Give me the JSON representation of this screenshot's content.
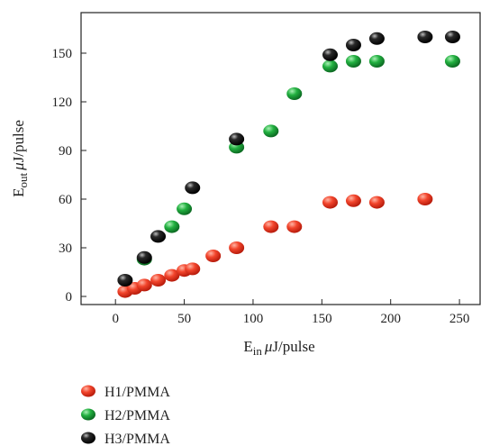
{
  "chart_data": {
    "type": "scatter",
    "title": "",
    "xlabel_main": "E",
    "xlabel_sub": "in",
    "xlabel_unit": "μJ/pulse",
    "ylabel_main": "E",
    "ylabel_sub": "out",
    "ylabel_unit": "μJ/pulse",
    "xlim": [
      -25,
      265
    ],
    "ylim": [
      -5,
      175
    ],
    "xticks": [
      0,
      50,
      100,
      150,
      200,
      250
    ],
    "yticks": [
      0,
      30,
      60,
      90,
      120,
      150
    ],
    "grid": false,
    "legend_position": "bottom-left, below plot",
    "series": [
      {
        "name": "H1/PMMA",
        "color": "#e8321e",
        "points": [
          [
            7,
            3
          ],
          [
            14,
            5
          ],
          [
            21,
            7
          ],
          [
            31,
            10
          ],
          [
            41,
            13
          ],
          [
            50,
            16
          ],
          [
            56,
            17
          ],
          [
            71,
            25
          ],
          [
            88,
            30
          ],
          [
            113,
            43
          ],
          [
            130,
            43
          ],
          [
            156,
            58
          ],
          [
            173,
            59
          ],
          [
            190,
            58
          ],
          [
            225,
            60
          ]
        ]
      },
      {
        "name": "H2/PMMA",
        "color": "#1a9a3a",
        "points": [
          [
            21,
            23
          ],
          [
            41,
            43
          ],
          [
            50,
            54
          ],
          [
            88,
            92
          ],
          [
            113,
            102
          ],
          [
            130,
            125
          ],
          [
            156,
            142
          ],
          [
            173,
            145
          ],
          [
            190,
            145
          ],
          [
            245,
            145
          ]
        ]
      },
      {
        "name": "H3/PMMA",
        "color": "#111111",
        "points": [
          [
            7,
            10
          ],
          [
            21,
            24
          ],
          [
            31,
            37
          ],
          [
            56,
            67
          ],
          [
            88,
            97
          ],
          [
            156,
            149
          ],
          [
            173,
            155
          ],
          [
            190,
            159
          ],
          [
            225,
            160
          ],
          [
            245,
            160
          ]
        ]
      }
    ]
  }
}
